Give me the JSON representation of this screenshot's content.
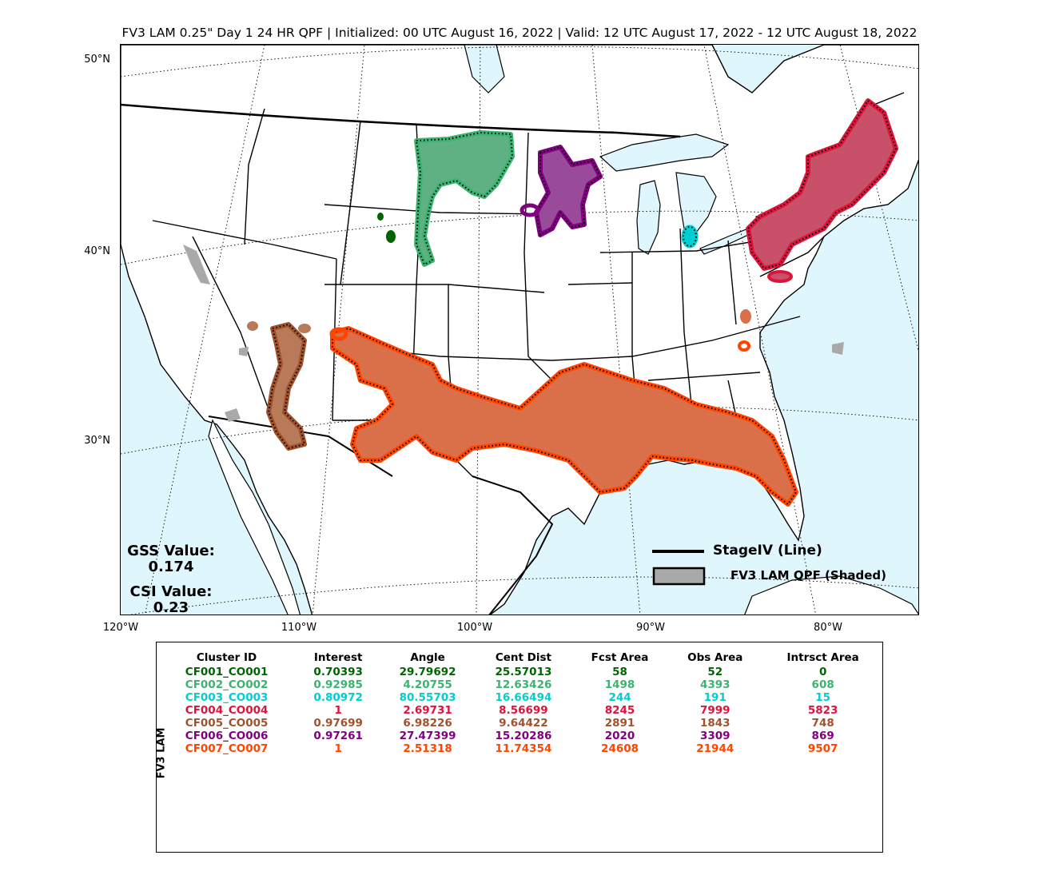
{
  "title": "FV3 LAM 0.25\" Day 1 24 HR QPF | Initialized: 00 UTC August 16, 2022 | Valid: 12 UTC August 17, 2022 - 12 UTC August 18, 2022",
  "map": {
    "lat_labels": [
      "50°N",
      "40°N",
      "30°N"
    ],
    "lon_labels": [
      "120°W",
      "110°W",
      "100°W",
      "90°W",
      "80°W"
    ],
    "ocean_color": "#dff6fd",
    "land_color": "#ffffff",
    "gss_label": "GSS Value:",
    "gss_value": "0.174",
    "csi_label": "CSI Value:",
    "csi_value": "0.23",
    "legend_line_label": "StageIV (Line)",
    "legend_shade_label": "FV3 LAM QPF (Shaded)",
    "unmatched_color": "#a9a9a9"
  },
  "table": {
    "side_label": "FV3 LAM",
    "headers": [
      "Cluster ID",
      "Interest",
      "Angle",
      "Cent Dist",
      "Fcst Area",
      "Obs Area",
      "Intrsct Area"
    ],
    "rows": [
      {
        "color": "#006400",
        "cells": [
          "CF001_CO001",
          "0.70393",
          "29.79692",
          "25.57013",
          "58",
          "52",
          "0"
        ]
      },
      {
        "color": "#3cb371",
        "cells": [
          "CF002_CO002",
          "0.92985",
          "4.20755",
          "12.63426",
          "1498",
          "4393",
          "608"
        ]
      },
      {
        "color": "#00ced1",
        "cells": [
          "CF003_CO003",
          "0.80972",
          "80.55703",
          "16.66494",
          "244",
          "191",
          "15"
        ]
      },
      {
        "color": "#dc143c",
        "cells": [
          "CF004_CO004",
          "1",
          "2.69731",
          "8.56699",
          "8245",
          "7999",
          "5823"
        ]
      },
      {
        "color": "#a0522d",
        "cells": [
          "CF005_CO005",
          "0.97699",
          "6.98226",
          "9.64422",
          "2891",
          "1843",
          "748"
        ]
      },
      {
        "color": "#800080",
        "cells": [
          "CF006_CO006",
          "0.97261",
          "27.47399",
          "15.20286",
          "2020",
          "3309",
          "869"
        ]
      },
      {
        "color": "#ff4500",
        "cells": [
          "CF007_CO007",
          "1",
          "2.51318",
          "11.74354",
          "24608",
          "21944",
          "9507"
        ]
      }
    ]
  }
}
